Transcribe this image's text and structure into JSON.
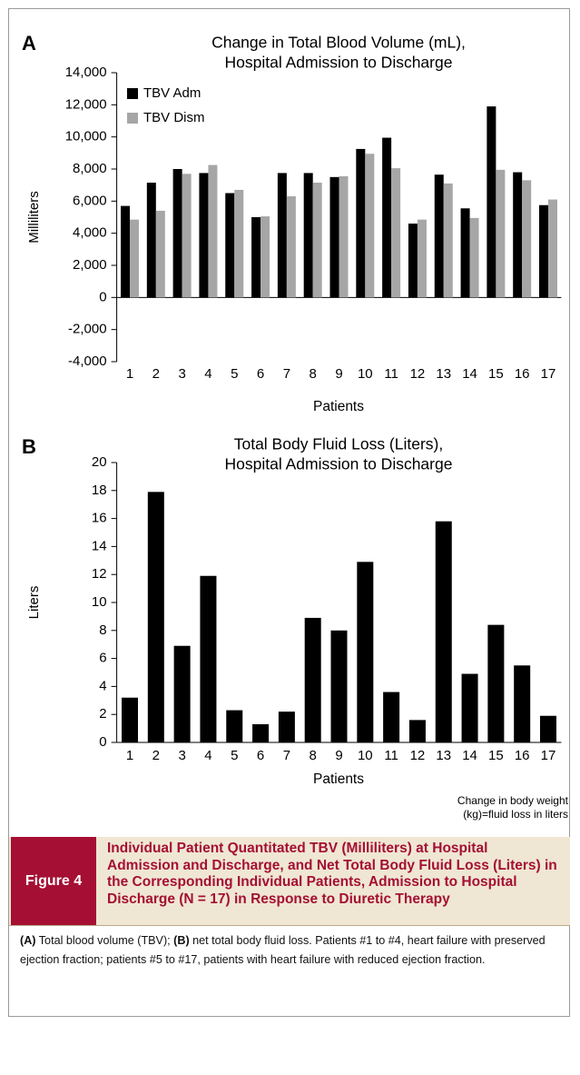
{
  "chart_data": [
    {
      "type": "bar",
      "panel": "A",
      "title": [
        "Change in Total Blood Volume (mL),",
        "Hospital Admission to Discharge"
      ],
      "ylabel": "Milliliters",
      "xlabel": "Patients",
      "categories": [
        "1",
        "2",
        "3",
        "4",
        "5",
        "6",
        "7",
        "8",
        "9",
        "10",
        "11",
        "12",
        "13",
        "14",
        "15",
        "16",
        "17"
      ],
      "series": [
        {
          "name": "TBV Adm",
          "color": "#000000",
          "values": [
            5700,
            7150,
            8000,
            7750,
            6500,
            5000,
            7750,
            7750,
            7500,
            9250,
            9950,
            4600,
            7650,
            5550,
            11900,
            7800,
            5750
          ]
        },
        {
          "name": "TBV Dism",
          "color": "#a6a6a6",
          "values": [
            4850,
            5400,
            7700,
            8250,
            6700,
            5050,
            6300,
            7150,
            7550,
            8950,
            8050,
            4850,
            7100,
            4950,
            7950,
            7300,
            6100
          ]
        }
      ],
      "ylim": [
        -4000,
        14000
      ],
      "yticks": [
        {
          "value": -4000,
          "label": "-4,000"
        },
        {
          "value": -2000,
          "label": "-2,000"
        },
        0,
        {
          "value": 2000,
          "label": "2,000"
        },
        {
          "value": 4000,
          "label": "4,000"
        },
        {
          "value": 6000,
          "label": "6,000"
        },
        {
          "value": 8000,
          "label": "8,000"
        },
        {
          "value": 10000,
          "label": "10,000"
        },
        {
          "value": 12000,
          "label": "12,000"
        },
        {
          "value": 14000,
          "label": "14,000"
        }
      ],
      "legend": "upper left",
      "grid": false
    },
    {
      "type": "bar",
      "panel": "B",
      "title": [
        "Total Body Fluid Loss (Liters),",
        "Hospital Admission to Discharge"
      ],
      "ylabel": "Liters",
      "xlabel": "Patients",
      "categories": [
        "1",
        "2",
        "3",
        "4",
        "5",
        "6",
        "7",
        "8",
        "9",
        "10",
        "11",
        "12",
        "13",
        "14",
        "15",
        "16",
        "17"
      ],
      "values": [
        3.2,
        17.9,
        6.9,
        11.9,
        2.3,
        1.3,
        2.2,
        8.9,
        8.0,
        12.9,
        3.6,
        1.6,
        15.8,
        4.9,
        8.4,
        5.5,
        1.9
      ],
      "color": "#000000",
      "ylim": [
        0,
        20
      ],
      "yticks": [
        0,
        2,
        4,
        6,
        8,
        10,
        12,
        14,
        16,
        18,
        20
      ],
      "note": [
        "Change in body weight",
        "(kg)=fluid loss in liters"
      ],
      "grid": false
    }
  ],
  "figure": {
    "label": "Figure 4",
    "title": "Individual Patient Quantitated TBV (Milliliters) at Hospital Admission and Discharge, and Net Total Body Fluid Loss (Liters) in the Corresponding Individual Patients, Admission to Hospital Discharge (N = 17) in Response to Diuretic Therapy",
    "caption": [
      "(A)",
      "Total blood volume (TBV);",
      "(B)",
      "net total body fluid loss. Patients #1 to #4, heart failure with preserved ejection fraction; patients #5 to #17, patients with heart failure with reduced ejection fraction."
    ]
  }
}
